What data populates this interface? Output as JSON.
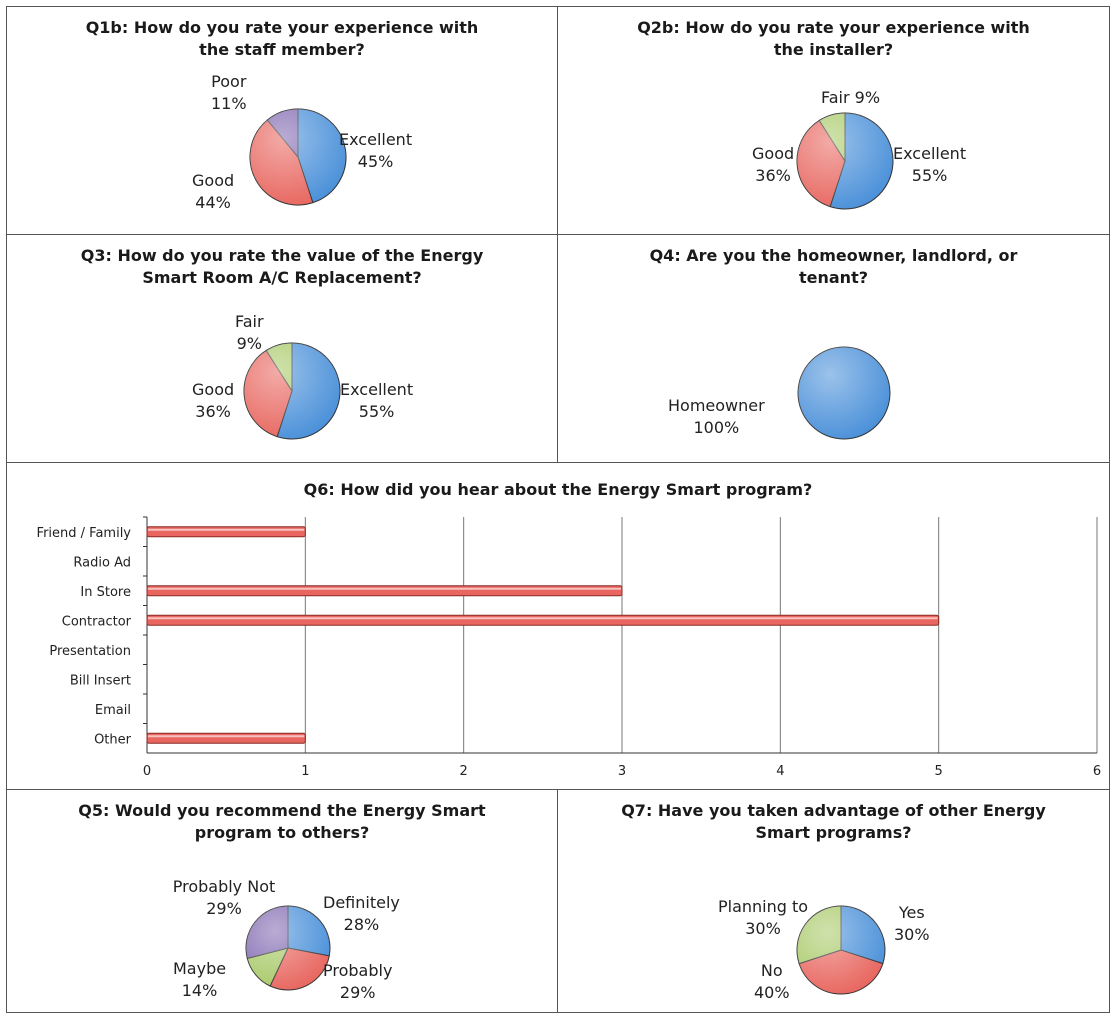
{
  "chart_data": [
    {
      "type": "pie",
      "title": [
        "Q1b: How do you rate your experience with",
        "the staff member?"
      ],
      "slices": [
        {
          "label": "Excellent",
          "value": 45,
          "text": "45%",
          "color": "#4a90d9"
        },
        {
          "label": "Good",
          "value": 44,
          "text": "44%",
          "color": "#e8665f"
        },
        {
          "label": "Poor",
          "value": 11,
          "text": "11%",
          "color": "#8068b0"
        }
      ]
    },
    {
      "type": "pie",
      "title": [
        "Q2b: How do you rate your experience with",
        "the installer?"
      ],
      "slices": [
        {
          "label": "Excellent",
          "value": 55,
          "text": "55%",
          "color": "#4a90d9"
        },
        {
          "label": "Good",
          "value": 36,
          "text": "36%",
          "color": "#e8665f"
        },
        {
          "label": "Fair",
          "value": 9,
          "text": "9%",
          "color": "#a8c968"
        }
      ]
    },
    {
      "type": "pie",
      "title": [
        "Q3: How do you rate the value of the Energy",
        "Smart Room A/C Replacement?"
      ],
      "slices": [
        {
          "label": "Excellent",
          "value": 55,
          "text": "55%",
          "color": "#4a90d9"
        },
        {
          "label": "Good",
          "value": 36,
          "text": "36%",
          "color": "#e8665f"
        },
        {
          "label": "Fair",
          "value": 9,
          "text": "9%",
          "color": "#a8c968"
        }
      ]
    },
    {
      "type": "pie",
      "title": [
        "Q4: Are you the homeowner, landlord, or",
        "tenant?"
      ],
      "slices": [
        {
          "label": "Homeowner",
          "value": 100,
          "text": "100%",
          "color": "#4a90d9"
        }
      ]
    },
    {
      "type": "bar",
      "orientation": "horizontal",
      "title": "Q6: How did you hear about the Energy Smart program?",
      "categories": [
        "Friend / Family",
        "Radio Ad",
        "In Store",
        "Contractor",
        "Presentation",
        "Bill Insert",
        "Email",
        "Other"
      ],
      "values": [
        1,
        0,
        3,
        5,
        0,
        0,
        0,
        1
      ],
      "xlim": [
        0,
        6
      ],
      "ticks": [
        "0",
        "1",
        "2",
        "3",
        "4",
        "5",
        "6"
      ],
      "bar_color": "#e8665f",
      "grid": true
    },
    {
      "type": "pie",
      "title": [
        "Q5: Would you recommend the Energy Smart",
        "program to others?"
      ],
      "slices": [
        {
          "label": "Definitely",
          "value": 28,
          "text": "28%",
          "color": "#4a90d9"
        },
        {
          "label": "Probably",
          "value": 29,
          "text": "29%",
          "color": "#e8665f"
        },
        {
          "label": "Maybe",
          "value": 14,
          "text": "14%",
          "color": "#a8c968"
        },
        {
          "label": "Probably Not",
          "value": 29,
          "text": "29%",
          "color": "#8068b0"
        }
      ]
    },
    {
      "type": "pie",
      "title": [
        "Q7: Have you taken advantage of other Energy",
        "Smart programs?"
      ],
      "slices": [
        {
          "label": "Yes",
          "value": 30,
          "text": "30%",
          "color": "#4a90d9"
        },
        {
          "label": "No",
          "value": 40,
          "text": "40%",
          "color": "#e8665f"
        },
        {
          "label": "Planning to",
          "value": 30,
          "text": "30%",
          "color": "#a8c968"
        }
      ]
    }
  ]
}
